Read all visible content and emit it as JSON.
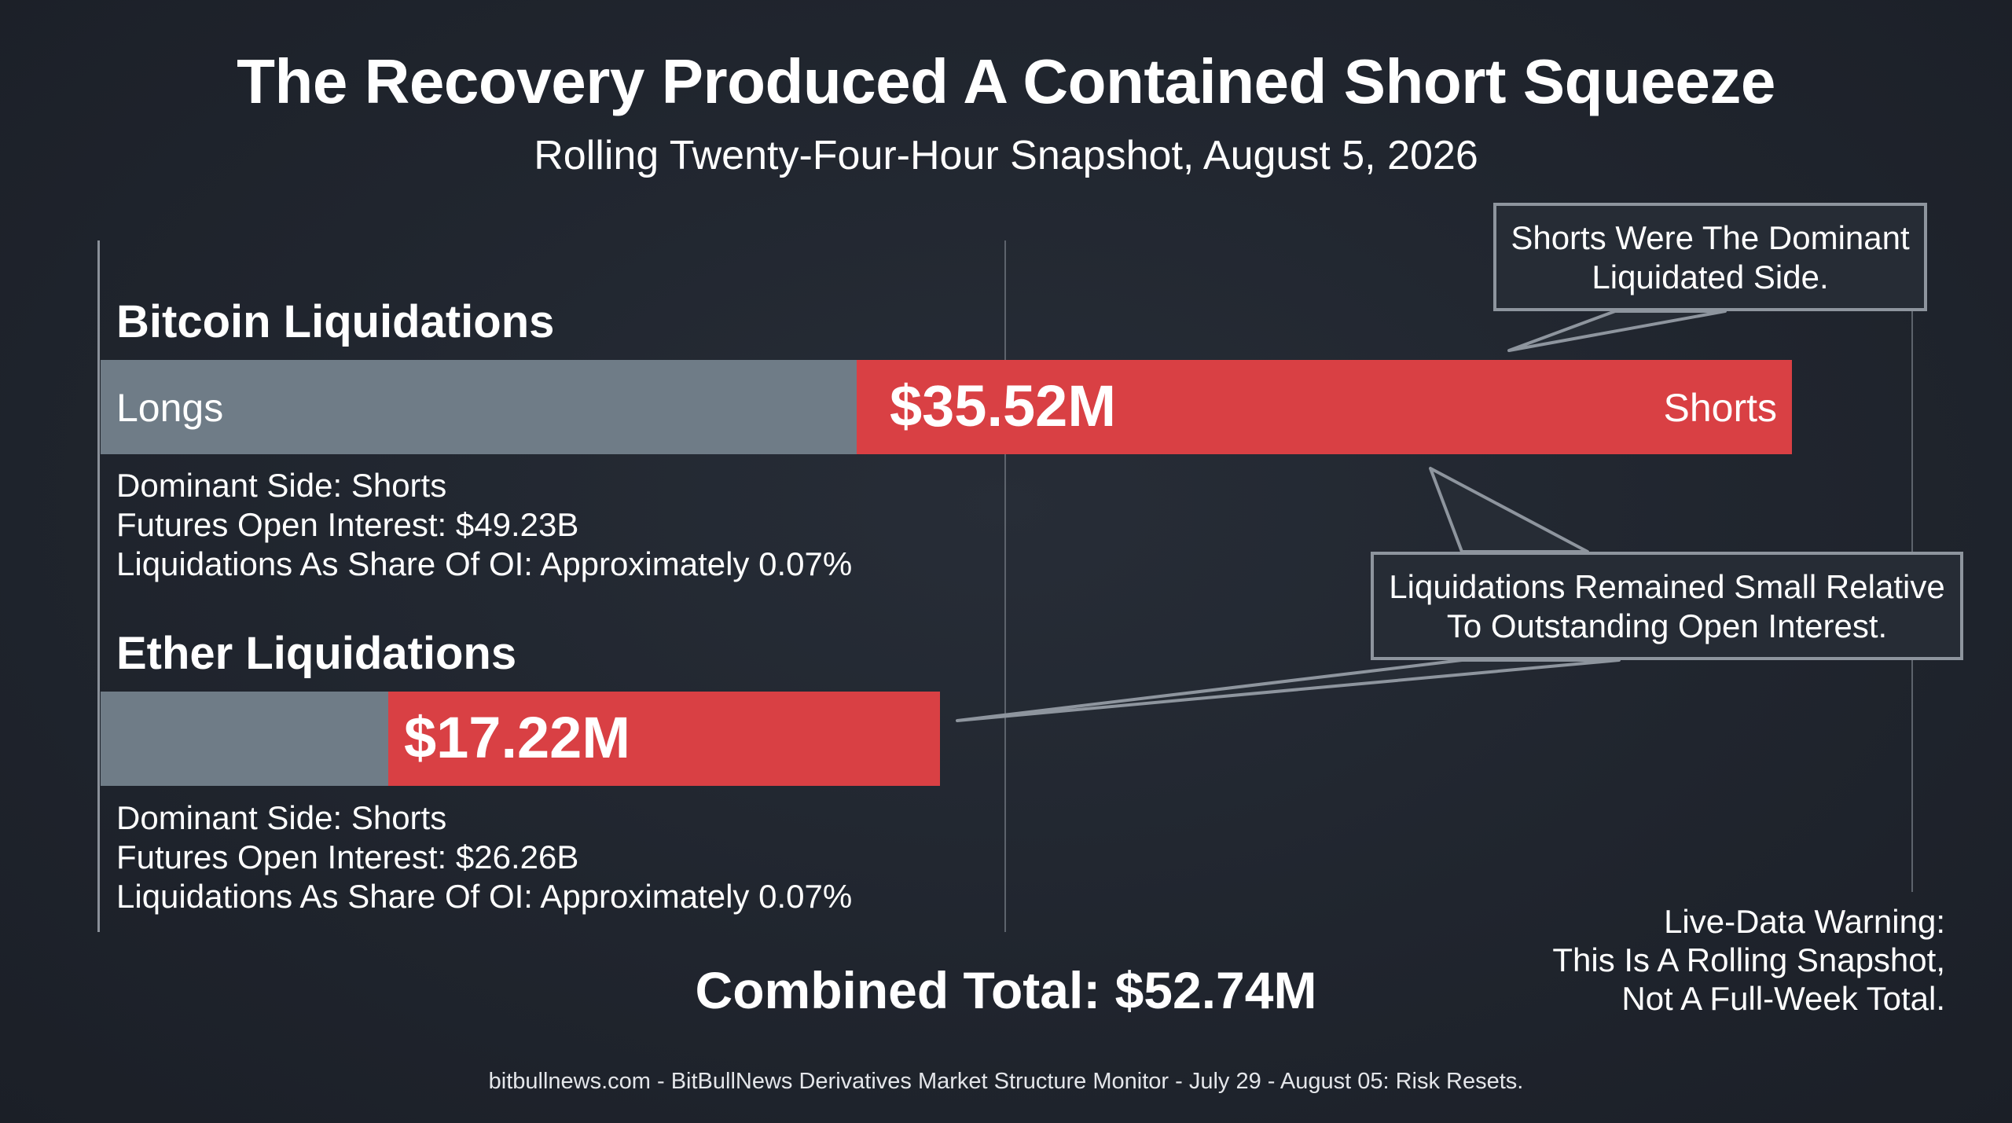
{
  "chart_data": {
    "type": "bar",
    "title": "The Recovery Produced A Contained Short Squeeze",
    "subtitle": "Rolling Twenty-Four-Hour Snapshot, August 5, 2026",
    "panels": [
      {
        "title": "Bitcoin Liquidations",
        "long_label": "Longs",
        "short_label": "Shorts",
        "short_value_label": "$35.52M",
        "short_value_musd": 35.52,
        "long_share": 0.45,
        "info": [
          "Dominant Side: Shorts",
          "Futures Open Interest: $49.23B",
          "Liquidations As Share Of OI: Approximately 0.07%"
        ]
      },
      {
        "title": "Ether Liquidations",
        "short_value_label": "$17.22M",
        "short_value_musd": 17.22,
        "long_share": 0.34,
        "info": [
          "Dominant Side: Shorts",
          "Futures Open Interest: $26.26B",
          "Liquidations As Share Of OI: Approximately 0.07%"
        ]
      }
    ],
    "callouts": [
      [
        "Shorts Were The Dominant",
        "Liquidated Side."
      ],
      [
        "Liquidations Remained Small Relative",
        "To Outstanding Open Interest."
      ]
    ],
    "total_label": "Combined Total: $52.74M",
    "warning": [
      "Live-Data Warning:",
      "This Is A Rolling Snapshot,",
      "Not A Full-Week Total."
    ],
    "footer": "bitbullnews.com - BitBullNews Derivatives Market Structure Monitor - July 29 - August 05: Risk Resets."
  },
  "colors": {
    "background": "#20252e",
    "longs_bar": "#6f7c87",
    "shorts_bar": "#d94044",
    "guide_lines": "#8a9099",
    "callout_border": "#8e959e",
    "text": "#ffffff"
  }
}
